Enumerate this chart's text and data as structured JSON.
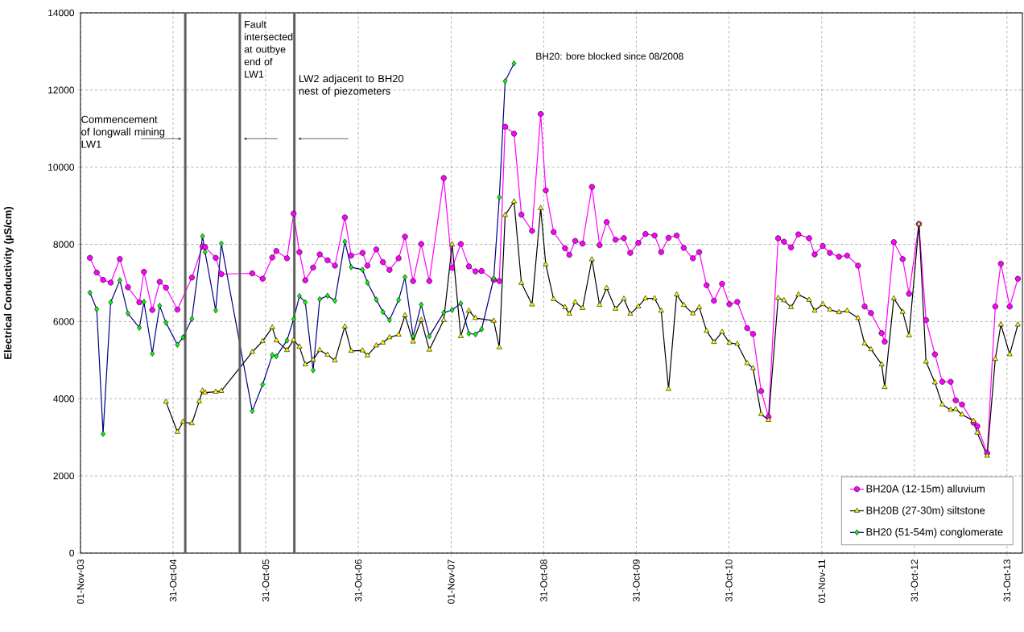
{
  "chart_data": {
    "type": "line",
    "ylabel": "Electrical Conductivity (µS/cm)",
    "xlim": [
      "2003-11-01",
      "2013-12-31"
    ],
    "ylim": [
      0,
      14000
    ],
    "xticks": [
      {
        "value": "2003-11-01",
        "label": "01-Nov-03"
      },
      {
        "value": "2004-10-31",
        "label": "31-Oct-04"
      },
      {
        "value": "2005-10-31",
        "label": "31-Oct-05"
      },
      {
        "value": "2006-10-31",
        "label": "31-Oct-06"
      },
      {
        "value": "2007-11-01",
        "label": "01-Nov-07"
      },
      {
        "value": "2008-10-31",
        "label": "31-Oct-08"
      },
      {
        "value": "2009-10-31",
        "label": "31-Oct-09"
      },
      {
        "value": "2010-10-31",
        "label": "31-Oct-10"
      },
      {
        "value": "2011-11-01",
        "label": "01-Nov-11"
      },
      {
        "value": "2012-10-31",
        "label": "31-Oct-12"
      },
      {
        "value": "2013-10-31",
        "label": "31-Oct-13"
      }
    ],
    "yticks": [
      0,
      2000,
      4000,
      6000,
      8000,
      10000,
      12000,
      14000
    ],
    "grid": true,
    "legend": "bottom right",
    "line_style": "solid",
    "annotations": [
      "BH20: bore blocked since 08/2008"
    ],
    "ref_lines": [
      {
        "axis": "x",
        "value": "2004-12-18",
        "label": "Commencement of longwall mining LW1",
        "color": "#606060"
      },
      {
        "axis": "x",
        "value": "2005-07-21",
        "label": "Fault intersected at outbye end of LW1",
        "color": "#606060"
      },
      {
        "axis": "x",
        "value": "2006-02-21",
        "label": "LW2 adjacent to BH20 nest of piezometers",
        "color": "#606060"
      }
    ],
    "series": [
      {
        "name": "BH20A (12-15m) alluvium",
        "color": "#ff00ff",
        "marker": "circle",
        "x": [
          "2003-12-08",
          "2004-01-04",
          "2004-01-29",
          "2004-02-28",
          "2004-04-04",
          "2004-05-06",
          "2004-06-20",
          "2004-07-08",
          "2004-08-10",
          "2004-09-08",
          "2004-10-03",
          "2004-11-17",
          "2005-01-13",
          "2005-02-24",
          "2005-03-06",
          "2005-04-17",
          "2005-05-09",
          "2005-09-08",
          "2005-10-19",
          "2005-11-26",
          "2005-12-12",
          "2006-01-23",
          "2006-02-18",
          "2006-03-13",
          "2006-04-05",
          "2006-05-06",
          "2006-06-01",
          "2006-07-02",
          "2006-07-31",
          "2006-09-08",
          "2006-10-03",
          "2006-11-17",
          "2006-12-06",
          "2007-01-10",
          "2007-02-05",
          "2007-03-03",
          "2007-04-08",
          "2007-05-03",
          "2007-06-04",
          "2007-07-06",
          "2007-08-07",
          "2007-10-03",
          "2007-11-05",
          "2007-12-09",
          "2008-01-10",
          "2008-02-05",
          "2008-02-29",
          "2008-04-17",
          "2008-05-09",
          "2008-06-01",
          "2008-07-06",
          "2008-08-04",
          "2008-09-15",
          "2008-10-19",
          "2008-11-08",
          "2008-12-09",
          "2009-01-23",
          "2009-02-09",
          "2009-03-04",
          "2009-04-02",
          "2009-05-09",
          "2009-06-08",
          "2009-07-06",
          "2009-08-10",
          "2009-09-12",
          "2009-10-07",
          "2009-11-08",
          "2009-12-06",
          "2010-01-11",
          "2010-02-06",
          "2010-03-07",
          "2010-04-08",
          "2010-05-06",
          "2010-06-11",
          "2010-07-06",
          "2010-08-04",
          "2010-09-02",
          "2010-10-04",
          "2010-11-02",
          "2010-12-03",
          "2011-01-11",
          "2011-02-03",
          "2011-03-07",
          "2011-04-05",
          "2011-05-13",
          "2011-06-05",
          "2011-07-03",
          "2011-08-01",
          "2011-09-12",
          "2011-10-04",
          "2011-11-05",
          "2011-12-03",
          "2012-01-08",
          "2012-02-09",
          "2012-03-23",
          "2012-04-18",
          "2012-05-13",
          "2012-06-24",
          "2012-07-06",
          "2012-08-11",
          "2012-09-15",
          "2012-10-10",
          "2012-11-18",
          "2012-12-16",
          "2013-01-20",
          "2013-02-18",
          "2013-03-23",
          "2013-04-12",
          "2013-05-07",
          "2013-06-21",
          "2013-07-06",
          "2013-08-14",
          "2013-09-15",
          "2013-10-07",
          "2013-11-11",
          "2013-12-13"
        ],
        "values": [
          7650,
          7270,
          7080,
          7010,
          7620,
          6890,
          6500,
          7290,
          6300,
          7030,
          6880,
          6310,
          7140,
          7950,
          7930,
          7650,
          7230,
          7250,
          7110,
          7660,
          7830,
          7640,
          8800,
          7800,
          7070,
          7400,
          7740,
          7590,
          7450,
          8700,
          7710,
          7780,
          7450,
          7870,
          7540,
          7340,
          7640,
          8200,
          7050,
          8010,
          7050,
          9720,
          7390,
          8010,
          7430,
          7300,
          7310,
          7080,
          7050,
          11050,
          10870,
          8770,
          8350,
          11380,
          9400,
          8320,
          7900,
          7730,
          8090,
          8020,
          9490,
          7980,
          8580,
          8120,
          8160,
          7780,
          8040,
          8270,
          8230,
          7800,
          8170,
          8230,
          7910,
          7640,
          7800,
          6940,
          6540,
          6980,
          6450,
          6510,
          5830,
          5680,
          4200,
          3530,
          8160,
          8070,
          7920,
          8260,
          8160,
          7740,
          7960,
          7780,
          7680,
          7710,
          7450,
          6390,
          6220,
          5700,
          5480,
          8060,
          7620,
          6720,
          8530,
          6040,
          5150,
          4440,
          4440,
          3960,
          3850,
          3380,
          3290,
          2590,
          6390,
          7500,
          6390,
          7110
        ]
      },
      {
        "name": "BH20B (27-30m) siltstone",
        "color": "#000000",
        "marker": "triangle",
        "x": [
          "2004-10-03",
          "2004-11-17",
          "2004-12-09",
          "2005-01-13",
          "2005-02-11",
          "2005-02-24",
          "2005-03-06",
          "2005-04-17",
          "2005-05-09",
          "2005-09-08",
          "2005-10-19",
          "2005-11-26",
          "2005-12-12",
          "2006-01-23",
          "2006-02-18",
          "2006-03-13",
          "2006-04-05",
          "2006-05-06",
          "2006-06-01",
          "2006-07-02",
          "2006-07-31",
          "2006-09-08",
          "2006-10-03",
          "2006-11-17",
          "2006-12-06",
          "2007-01-10",
          "2007-02-05",
          "2007-03-03",
          "2007-04-08",
          "2007-05-03",
          "2007-06-04",
          "2007-07-06",
          "2007-08-07",
          "2007-10-03",
          "2007-11-05",
          "2007-12-09",
          "2008-01-10",
          "2008-02-05",
          "2008-04-17",
          "2008-05-09",
          "2008-06-01",
          "2008-07-06",
          "2008-08-04",
          "2008-09-15",
          "2008-10-19",
          "2008-11-08",
          "2008-12-09",
          "2009-01-23",
          "2009-02-09",
          "2009-03-04",
          "2009-04-02",
          "2009-05-09",
          "2009-06-08",
          "2009-07-06",
          "2009-08-10",
          "2009-09-12",
          "2009-10-07",
          "2009-11-08",
          "2009-12-06",
          "2010-01-11",
          "2010-02-06",
          "2010-03-07",
          "2010-04-08",
          "2010-05-06",
          "2010-06-11",
          "2010-07-06",
          "2010-08-04",
          "2010-09-02",
          "2010-10-04",
          "2010-11-02",
          "2010-12-03",
          "2011-01-11",
          "2011-02-03",
          "2011-03-07",
          "2011-04-05",
          "2011-05-13",
          "2011-06-05",
          "2011-07-03",
          "2011-08-01",
          "2011-09-12",
          "2011-10-04",
          "2011-11-05",
          "2011-12-03",
          "2012-01-08",
          "2012-02-09",
          "2012-03-23",
          "2012-04-18",
          "2012-05-13",
          "2012-06-24",
          "2012-07-06",
          "2012-08-11",
          "2012-09-15",
          "2012-10-10",
          "2012-11-18",
          "2012-12-16",
          "2013-01-20",
          "2013-02-18",
          "2013-03-23",
          "2013-04-12",
          "2013-05-07",
          "2013-06-21",
          "2013-07-06",
          "2013-08-14",
          "2013-09-15",
          "2013-10-07",
          "2013-11-11",
          "2013-12-13"
        ],
        "values": [
          3920,
          3140,
          3400,
          3360,
          3930,
          4210,
          4160,
          4180,
          4200,
          5210,
          5490,
          5850,
          5510,
          5260,
          5520,
          5350,
          4890,
          5010,
          5260,
          5140,
          4990,
          5870,
          5240,
          5250,
          5120,
          5380,
          5450,
          5590,
          5660,
          6160,
          5480,
          6040,
          5270,
          6040,
          8000,
          5620,
          6280,
          6090,
          6020,
          5330,
          8760,
          9110,
          7000,
          6440,
          8940,
          7480,
          6580,
          6370,
          6200,
          6500,
          6350,
          7610,
          6430,
          6870,
          6330,
          6590,
          6200,
          6390,
          6600,
          6600,
          6280,
          4250,
          6700,
          6430,
          6210,
          6370,
          5760,
          5470,
          5730,
          5450,
          5420,
          4920,
          4790,
          3600,
          3450,
          6610,
          6550,
          6370,
          6700,
          6560,
          6280,
          6450,
          6310,
          6240,
          6280,
          6090,
          5430,
          5280,
          4890,
          4300,
          6600,
          6250,
          5640,
          8530,
          4960,
          4420,
          3850,
          3710,
          3730,
          3590,
          3430,
          3120,
          2520,
          5030,
          5920,
          5150,
          5920
        ]
      },
      {
        "name": "BH20 (51-54m) conglomerate",
        "color": "#000080",
        "marker": "diamond",
        "x": [
          "2003-12-08",
          "2004-01-04",
          "2004-01-29",
          "2004-02-28",
          "2004-04-04",
          "2004-05-06",
          "2004-06-20",
          "2004-07-08",
          "2004-08-10",
          "2004-09-08",
          "2004-10-03",
          "2004-11-17",
          "2004-12-09",
          "2005-01-13",
          "2005-02-24",
          "2005-03-06",
          "2005-04-17",
          "2005-05-09",
          "2005-09-08",
          "2005-10-19",
          "2005-11-26",
          "2005-12-12",
          "2006-01-23",
          "2006-02-18",
          "2006-03-13",
          "2006-04-05",
          "2006-05-06",
          "2006-06-01",
          "2006-07-02",
          "2006-07-31",
          "2006-09-08",
          "2006-10-03",
          "2006-11-17",
          "2006-12-06",
          "2007-01-10",
          "2007-02-05",
          "2007-03-03",
          "2007-04-08",
          "2007-05-03",
          "2007-06-04",
          "2007-07-06",
          "2007-08-07",
          "2007-10-03",
          "2007-11-05",
          "2007-12-09",
          "2008-01-10",
          "2008-02-05",
          "2008-02-29",
          "2008-04-17",
          "2008-05-09",
          "2008-06-01",
          "2008-07-06"
        ],
        "values": [
          6750,
          6320,
          3090,
          6500,
          7070,
          6210,
          5840,
          6510,
          5170,
          6410,
          5970,
          5400,
          5590,
          6070,
          8210,
          7800,
          6290,
          8020,
          3680,
          4370,
          5130,
          5100,
          5510,
          6060,
          6660,
          6500,
          4740,
          6580,
          6670,
          6540,
          8070,
          7410,
          7340,
          7010,
          6570,
          6250,
          6040,
          6560,
          7150,
          5620,
          6440,
          5620,
          6230,
          6300,
          6470,
          5690,
          5670,
          5800,
          7120,
          9220,
          12230,
          12690
        ]
      }
    ]
  }
}
